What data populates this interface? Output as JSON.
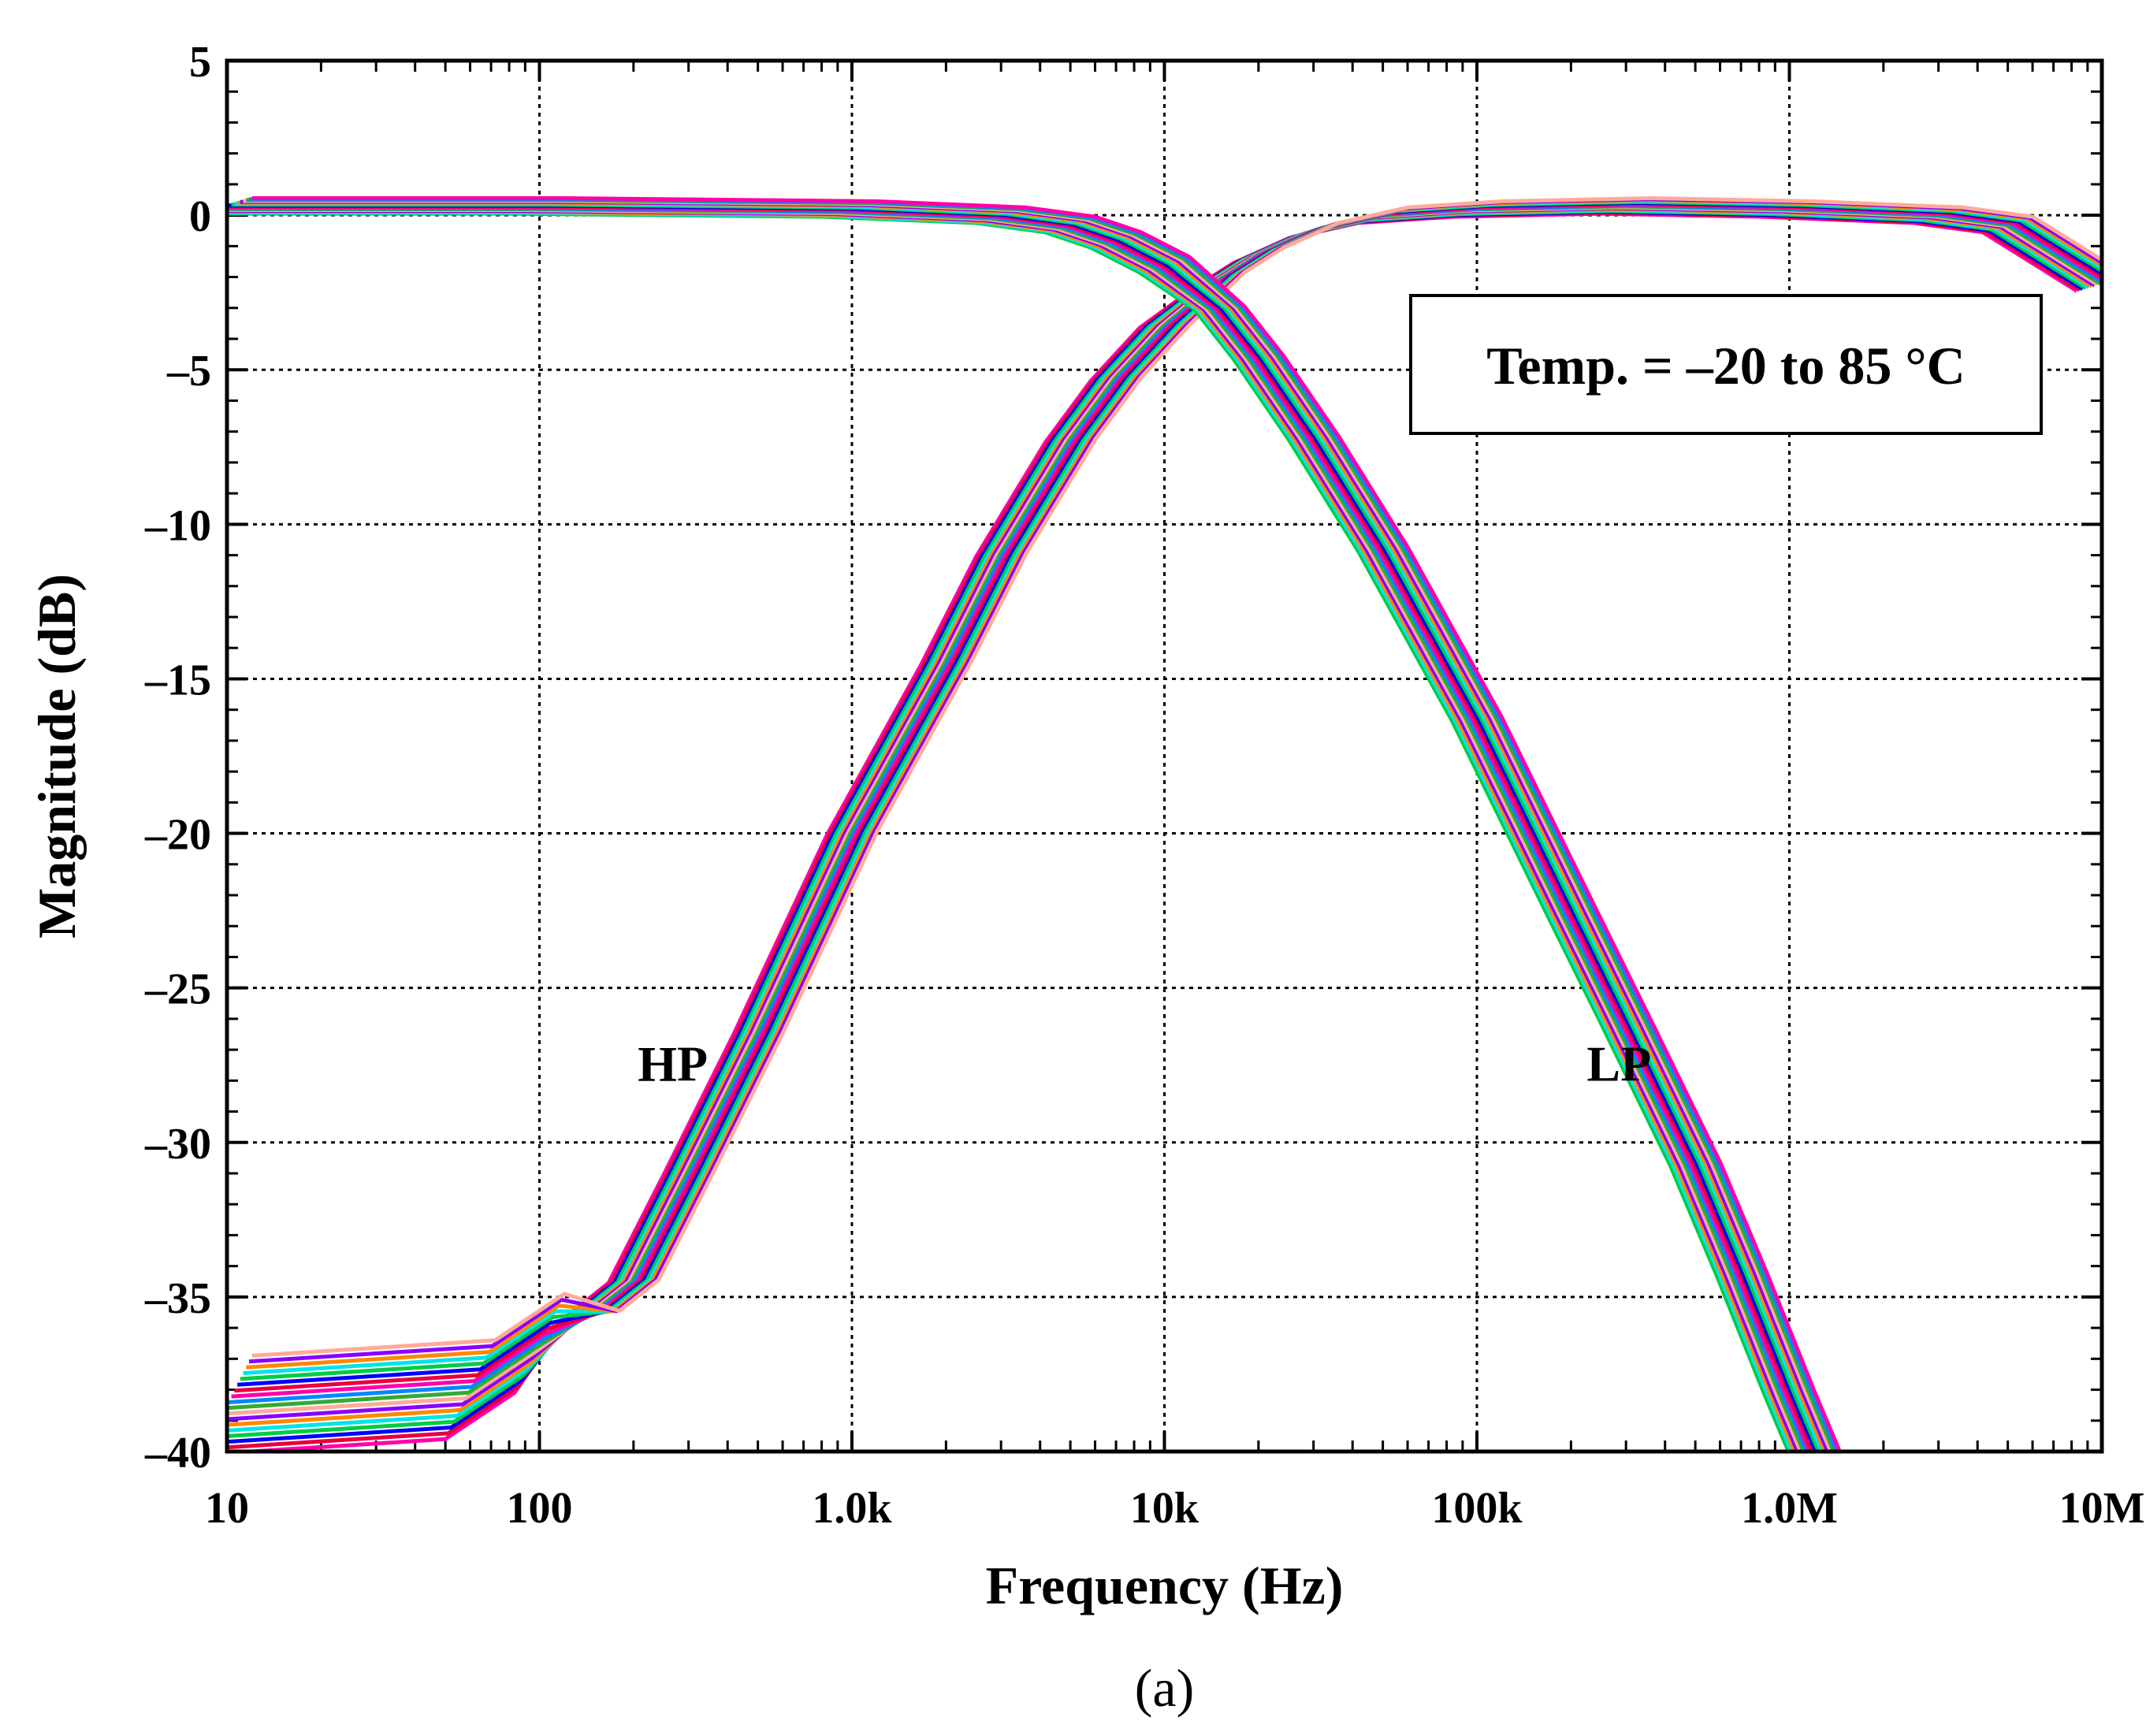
{
  "chart_data": {
    "type": "line",
    "title": "",
    "xlabel": "Frequency (Hz)",
    "ylabel": "Magnitude (dB)",
    "xscale": "log",
    "xlim": [
      10,
      10000000
    ],
    "ylim": [
      -40,
      5
    ],
    "grid": true,
    "x_ticks": [
      10,
      100,
      1000,
      10000,
      100000,
      1000000,
      10000000
    ],
    "x_tick_labels": [
      "10",
      "100",
      "1.0k",
      "10k",
      "100k",
      "1.0M",
      "10M"
    ],
    "y_ticks": [
      5,
      0,
      -5,
      -10,
      -15,
      -20,
      -25,
      -30,
      -35,
      -40
    ],
    "y_tick_labels": [
      "5",
      "0",
      "-5",
      "-10",
      "-15",
      "-20",
      "-25",
      "-30",
      "-35",
      "-40"
    ],
    "annotations": [
      {
        "text": "HP",
        "x": 300,
        "y": -27.5
      },
      {
        "text": "LP",
        "x": 320000,
        "y": -27.5
      }
    ],
    "legend_box": {
      "text": "Temp. = –20 to 85 °C",
      "placement": "top-right"
    },
    "caption": "(a)",
    "series_colors": [
      "#ff00aa",
      "#e8003c",
      "#0000ff",
      "#00cc44",
      "#00e5e5",
      "#ff8800",
      "#8800ff",
      "#ffaa99",
      "#33aa33",
      "#0088ff"
    ],
    "series": [
      {
        "name": "HP",
        "x": [
          10,
          60,
          100,
          150,
          200,
          300,
          500,
          1000,
          2000,
          3000,
          5000,
          7000,
          10000,
          15000,
          20000,
          30000,
          50000,
          100000,
          300000,
          1000000,
          3000000,
          5000000,
          10000000
        ],
        "y": [
          -38.5,
          -38.0,
          -36.5,
          -35.5,
          -34.5,
          -31.0,
          -26.5,
          -20.0,
          -14.5,
          -11.0,
          -7.3,
          -5.3,
          -3.6,
          -2.1,
          -1.3,
          -0.5,
          0.0,
          0.2,
          0.3,
          0.2,
          0.0,
          -0.3,
          -2.2
        ]
      },
      {
        "name": "LP",
        "x": [
          10,
          100,
          1000,
          3000,
          5000,
          7000,
          10000,
          15000,
          20000,
          30000,
          50000,
          100000,
          200000,
          300000,
          500000,
          700000,
          1000000,
          1200000
        ],
        "y": [
          0.3,
          0.3,
          0.2,
          0.0,
          -0.3,
          -0.8,
          -1.6,
          -3.0,
          -4.6,
          -7.2,
          -10.8,
          -16.3,
          -22.5,
          -26.1,
          -30.7,
          -34.2,
          -38.1,
          -40.0
        ]
      }
    ]
  }
}
